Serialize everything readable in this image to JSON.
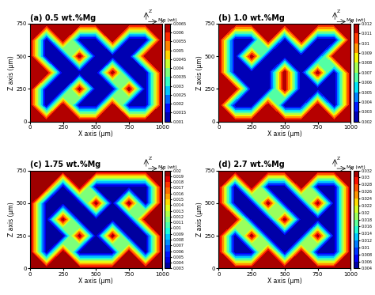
{
  "chart_data": [
    {
      "type": "contour",
      "title": "(a) 0.5 wt.%Mg",
      "x_label": "X axis (μm)",
      "y_label": "Z axis (μm)",
      "xlim": [
        0,
        1000
      ],
      "ylim": [
        0,
        750
      ],
      "xticks": [
        0,
        250,
        500,
        750,
        1000
      ],
      "yticks": [
        0,
        250,
        500,
        750
      ],
      "annotations": [
        "Z",
        "X"
      ],
      "x": [
        0,
        125,
        250,
        375,
        500,
        625,
        750,
        875,
        1000
      ],
      "z": [
        0,
        125,
        250,
        375,
        500,
        625,
        750
      ],
      "cells": [
        [
          0.0065,
          0.0065,
          0.0065,
          0.0065,
          0.0065,
          0.0065,
          0.0065,
          0.0065,
          0.0065
        ],
        [
          0.0065,
          0.001,
          0.0065,
          0.001,
          0.001,
          0.0065,
          0.001,
          0.001,
          0.0065
        ],
        [
          0.0065,
          0.001,
          0.001,
          0.0065,
          0.001,
          0.001,
          0.0065,
          0.001,
          0.0065
        ],
        [
          0.0065,
          0.0065,
          0.001,
          0.001,
          0.001,
          0.0065,
          0.001,
          0.001,
          0.0065
        ],
        [
          0.0065,
          0.001,
          0.001,
          0.0065,
          0.001,
          0.001,
          0.001,
          0.0065,
          0.0065
        ],
        [
          0.0065,
          0.001,
          0.0065,
          0.001,
          0.001,
          0.0065,
          0.001,
          0.001,
          0.0065
        ],
        [
          0.0065,
          0.0065,
          0.0065,
          0.0065,
          0.0065,
          0.0065,
          0.0065,
          0.0065,
          0.0065
        ]
      ],
      "colorbar_label": "Mg (wt)",
      "colorbar_range": [
        0.001,
        0.0065
      ],
      "colorbar_ticks": [
        0.001,
        0.0015,
        0.002,
        0.0025,
        0.003,
        0.0035,
        0.004,
        0.0045,
        0.005,
        0.0055,
        0.006,
        0.0065
      ]
    },
    {
      "type": "contour",
      "title": "(b) 1.0 wt.%Mg",
      "x_label": "X axis (μm)",
      "y_label": "Z axis (μm)",
      "xlim": [
        0,
        1000
      ],
      "ylim": [
        0,
        750
      ],
      "xticks": [
        0,
        250,
        500,
        750,
        1000
      ],
      "yticks": [
        0,
        250,
        500,
        750
      ],
      "annotations": [
        "Z",
        "X"
      ],
      "x": [
        0,
        125,
        250,
        375,
        500,
        625,
        750,
        875,
        1000
      ],
      "z": [
        0,
        125,
        250,
        375,
        500,
        625,
        750
      ],
      "cells": [
        [
          0.012,
          0.012,
          0.012,
          0.012,
          0.012,
          0.012,
          0.012,
          0.012,
          0.012
        ],
        [
          0.012,
          0.002,
          0.002,
          0.012,
          0.002,
          0.002,
          0.012,
          0.002,
          0.012
        ],
        [
          0.012,
          0.012,
          0.002,
          0.002,
          0.012,
          0.002,
          0.002,
          0.002,
          0.012
        ],
        [
          0.012,
          0.002,
          0.002,
          0.002,
          0.012,
          0.002,
          0.012,
          0.002,
          0.012
        ],
        [
          0.012,
          0.002,
          0.012,
          0.002,
          0.002,
          0.002,
          0.002,
          0.012,
          0.012
        ],
        [
          0.012,
          0.002,
          0.002,
          0.012,
          0.002,
          0.012,
          0.002,
          0.002,
          0.012
        ],
        [
          0.012,
          0.012,
          0.012,
          0.012,
          0.012,
          0.012,
          0.012,
          0.012,
          0.012
        ]
      ],
      "colorbar_label": "Mg (wt)",
      "colorbar_range": [
        0.002,
        0.012
      ],
      "colorbar_ticks": [
        0.002,
        0.003,
        0.004,
        0.005,
        0.006,
        0.007,
        0.008,
        0.009,
        0.01,
        0.011,
        0.012
      ]
    },
    {
      "type": "contour",
      "title": "(c) 1.75 wt.%Mg",
      "x_label": "X axis (μm)",
      "y_label": "Z axis (μm)",
      "xlim": [
        0,
        1000
      ],
      "ylim": [
        0,
        750
      ],
      "xticks": [
        0,
        250,
        500,
        750,
        1000
      ],
      "yticks": [
        0,
        250,
        500,
        750
      ],
      "annotations": [
        "Z",
        "X"
      ],
      "x": [
        0,
        125,
        250,
        375,
        500,
        625,
        750,
        875,
        1000
      ],
      "z": [
        0,
        125,
        250,
        375,
        500,
        625,
        750
      ],
      "cells": [
        [
          0.02,
          0.02,
          0.02,
          0.02,
          0.02,
          0.02,
          0.02,
          0.02,
          0.02
        ],
        [
          0.02,
          0.003,
          0.02,
          0.003,
          0.003,
          0.003,
          0.02,
          0.003,
          0.02
        ],
        [
          0.02,
          0.003,
          0.003,
          0.02,
          0.003,
          0.02,
          0.003,
          0.003,
          0.02
        ],
        [
          0.02,
          0.003,
          0.02,
          0.003,
          0.003,
          0.003,
          0.003,
          0.02,
          0.02
        ],
        [
          0.02,
          0.003,
          0.003,
          0.003,
          0.02,
          0.003,
          0.02,
          0.003,
          0.02
        ],
        [
          0.02,
          0.02,
          0.003,
          0.02,
          0.003,
          0.003,
          0.003,
          0.003,
          0.02
        ],
        [
          0.02,
          0.02,
          0.02,
          0.02,
          0.02,
          0.02,
          0.02,
          0.02,
          0.02
        ]
      ],
      "colorbar_label": "Mg (wt)",
      "colorbar_range": [
        0.003,
        0.02
      ],
      "colorbar_ticks": [
        0.003,
        0.004,
        0.005,
        0.006,
        0.007,
        0.008,
        0.009,
        0.01,
        0.011,
        0.012,
        0.013,
        0.014,
        0.015,
        0.016,
        0.017,
        0.018,
        0.019,
        0.02
      ]
    },
    {
      "type": "contour",
      "title": "(d) 2.7 wt.%Mg",
      "x_label": "X axis (μm)",
      "y_label": "Z axis (μm)",
      "xlim": [
        0,
        1000
      ],
      "ylim": [
        0,
        750
      ],
      "xticks": [
        0,
        250,
        500,
        750,
        1000
      ],
      "yticks": [
        0,
        250,
        500,
        750
      ],
      "annotations": [
        "Z",
        "X"
      ],
      "x": [
        0,
        125,
        250,
        375,
        500,
        625,
        750,
        875,
        1000
      ],
      "z": [
        0,
        125,
        250,
        375,
        500,
        625,
        750
      ],
      "cells": [
        [
          0.032,
          0.032,
          0.032,
          0.032,
          0.032,
          0.032,
          0.032,
          0.032,
          0.032
        ],
        [
          0.032,
          0.004,
          0.004,
          0.032,
          0.004,
          0.032,
          0.004,
          0.004,
          0.032
        ],
        [
          0.032,
          0.004,
          0.032,
          0.004,
          0.004,
          0.004,
          0.032,
          0.004,
          0.032
        ],
        [
          0.032,
          0.032,
          0.004,
          0.004,
          0.032,
          0.004,
          0.004,
          0.004,
          0.032
        ],
        [
          0.032,
          0.004,
          0.004,
          0.032,
          0.004,
          0.004,
          0.032,
          0.004,
          0.032
        ],
        [
          0.032,
          0.004,
          0.032,
          0.004,
          0.004,
          0.032,
          0.004,
          0.004,
          0.032
        ],
        [
          0.032,
          0.032,
          0.032,
          0.032,
          0.032,
          0.032,
          0.032,
          0.032,
          0.032
        ]
      ],
      "colorbar_label": "Mg (wt)",
      "colorbar_range": [
        0.004,
        0.032
      ],
      "colorbar_ticks": [
        0.004,
        0.006,
        0.008,
        0.01,
        0.012,
        0.014,
        0.016,
        0.018,
        0.02,
        0.022,
        0.024,
        0.026,
        0.028,
        0.03,
        0.032
      ]
    }
  ]
}
